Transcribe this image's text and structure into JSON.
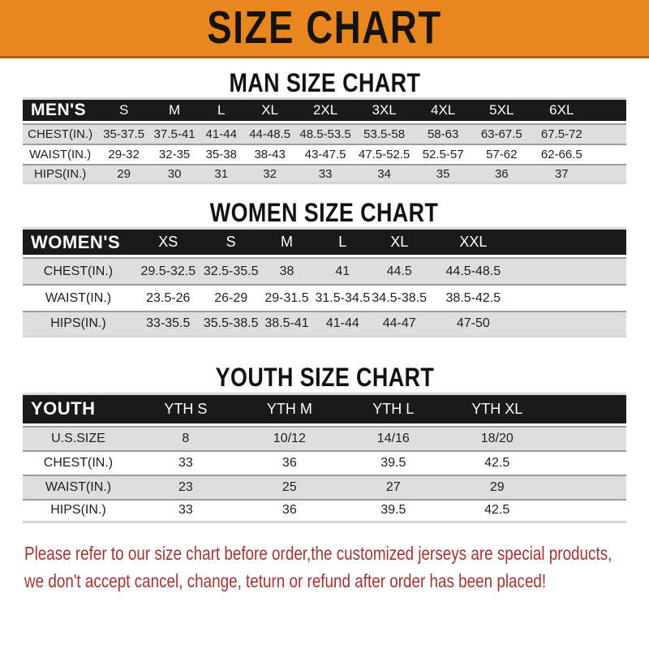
{
  "banner": {
    "title": "SIZE CHART"
  },
  "colors": {
    "banner": "#E8871E",
    "banner_border": "#A96011",
    "banner_text": "#151210",
    "header_bar": "#1A1A1A",
    "row_shade": "#DEDEDE",
    "disclaimer_red": "#A33434"
  },
  "sections": [
    {
      "heading": "MAN SIZE CHART",
      "table": {
        "corner": "MEN'S",
        "columns": [
          "S",
          "M",
          "L",
          "XL",
          "2XL",
          "3XL",
          "4XL",
          "5XL",
          "6XL"
        ],
        "rows": [
          {
            "label": "CHEST(IN.)",
            "values": [
              "35-37.5",
              "37.5-41",
              "41-44",
              "44-48.5",
              "48.5-53.5",
              "53.5-58",
              "58-63",
              "63-67.5",
              "67.5-72"
            ]
          },
          {
            "label": "WAIST(IN.)",
            "values": [
              "29-32",
              "32-35",
              "35-38",
              "38-43",
              "43-47.5",
              "47.5-52.5",
              "52.5-57",
              "57-62",
              "62-66.5"
            ]
          },
          {
            "label": "HIPS(IN.)",
            "values": [
              "29",
              "30",
              "31",
              "32",
              "33",
              "34",
              "35",
              "36",
              "37"
            ]
          }
        ]
      }
    },
    {
      "heading": "WOMEN SIZE CHART",
      "table": {
        "corner": "WOMEN'S",
        "columns": [
          "XS",
          "S",
          "M",
          "L",
          "XL",
          "XXL"
        ],
        "rows": [
          {
            "label": "CHEST(IN.)",
            "values": [
              "29.5-32.5",
              "32.5-35.5",
              "38",
              "41",
              "44.5",
              "44.5-48.5"
            ]
          },
          {
            "label": "WAIST(IN.)",
            "values": [
              "23.5-26",
              "26-29",
              "29-31.5",
              "31.5-34.5",
              "34.5-38.5",
              "38.5-42.5"
            ]
          },
          {
            "label": "HIPS(IN.)",
            "values": [
              "33-35.5",
              "35.5-38.5",
              "38.5-41",
              "41-44",
              "44-47",
              "47-50"
            ]
          }
        ]
      }
    },
    {
      "heading": "YOUTH SIZE CHART",
      "table": {
        "corner": "YOUTH",
        "columns": [
          "YTH S",
          "YTH M",
          "YTH L",
          "YTH XL"
        ],
        "rows": [
          {
            "label": "U.S.SIZE",
            "values": [
              "8",
              "10/12",
              "14/16",
              "18/20"
            ]
          },
          {
            "label": "CHEST(IN.)",
            "values": [
              "33",
              "36",
              "39.5",
              "42.5"
            ]
          },
          {
            "label": "WAIST(IN.)",
            "values": [
              "23",
              "25",
              "27",
              "29"
            ]
          },
          {
            "label": "HIPS(IN.)",
            "values": [
              "33",
              "36",
              "39.5",
              "42.5"
            ]
          }
        ]
      }
    }
  ],
  "disclaimer": {
    "lines": [
      "Please refer to our size chart before order,the customized jerseys are special products,",
      "we don't accept cancel, change, teturn or refund after order has been placed!"
    ]
  }
}
